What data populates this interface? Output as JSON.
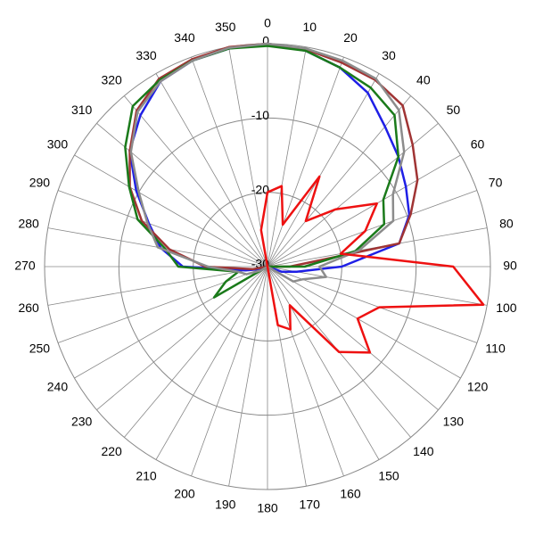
{
  "chart_data": {
    "type": "polar",
    "theta": [
      0,
      10,
      20,
      30,
      40,
      50,
      60,
      70,
      80,
      90,
      100,
      110,
      120,
      130,
      140,
      150,
      160,
      170,
      180,
      190,
      200,
      210,
      220,
      230,
      240,
      250,
      260,
      270,
      280,
      290,
      300,
      310,
      320,
      330,
      340,
      350
    ],
    "thetaticks": [
      0,
      10,
      20,
      30,
      40,
      50,
      60,
      70,
      80,
      90,
      100,
      110,
      120,
      130,
      140,
      150,
      160,
      170,
      180,
      190,
      200,
      210,
      220,
      230,
      240,
      250,
      260,
      270,
      280,
      290,
      300,
      310,
      320,
      330,
      340,
      350
    ],
    "rlim": [
      -30,
      0
    ],
    "rticks": [
      -30,
      -20,
      -10,
      0
    ],
    "series": [
      {
        "color": "#1f1fe6",
        "values": [
          0,
          -0.5,
          -1.5,
          -3,
          -5.4,
          -7,
          -8.5,
          -9.7,
          -12,
          -20,
          -26,
          -28,
          -30,
          -30,
          -30,
          -30,
          -30,
          -30,
          -30,
          -30,
          -30,
          -30,
          -30,
          -30,
          -30,
          -29,
          -27,
          -18.6,
          -15.4,
          -13,
          -9.6,
          -5.8,
          -3.4,
          -1.2,
          -0.5,
          -0.2
        ]
      },
      {
        "color": "#a03434",
        "values": [
          0,
          -0.3,
          -0.8,
          -1,
          -1.7,
          -4.5,
          -6.7,
          -9.5,
          -12,
          -27,
          -30,
          -30,
          -30,
          -30,
          -30,
          -30,
          -30,
          -30,
          -30,
          -30,
          -30,
          -30,
          -30,
          -30,
          -30,
          -30,
          -28,
          -21.6,
          -16.6,
          -12,
          -8.6,
          -5.8,
          -2.6,
          -0.8,
          -0.3,
          0
        ]
      },
      {
        "color": "#1a7a1a",
        "values": [
          -0.3,
          -0.5,
          -1.5,
          -2.2,
          -3.4,
          -7,
          -12,
          -13.3,
          -18,
          -25,
          -30,
          -30,
          -30,
          -30,
          -30,
          -30,
          -30,
          -30,
          -30,
          -30,
          -30,
          -30,
          -30,
          -30,
          -21.7,
          -24,
          -26,
          -18,
          -16,
          -11.4,
          -8.5,
          -5,
          -1.8,
          -1,
          -0.5,
          -0.2
        ]
      },
      {
        "color": "#8c8c8c",
        "values": [
          0,
          -0.2,
          -0.5,
          -0.8,
          -2.5,
          -6,
          -10.5,
          -12,
          -17.5,
          -23,
          -22,
          -25,
          -26,
          -30,
          -30,
          -30,
          -30,
          -30,
          -30,
          -30,
          -30,
          -30,
          -30,
          -30,
          -29,
          -27,
          -26,
          -22,
          -15,
          -12.8,
          -10,
          -6,
          -2.8,
          -1.2,
          -0.5,
          -0.1
        ]
      },
      {
        "color": "#ee1111",
        "values": [
          -20,
          -19,
          -24,
          -16,
          -22,
          -18,
          -13,
          -16,
          -20,
          -5,
          -0.5,
          -14,
          -16,
          -12,
          -15,
          -24,
          -21,
          -22,
          -30,
          -30,
          -30,
          -30,
          -30,
          -30,
          -30,
          -30,
          -30,
          -30,
          -30,
          -30,
          -30,
          -30,
          -30,
          -30,
          -30,
          -25
        ]
      }
    ]
  }
}
